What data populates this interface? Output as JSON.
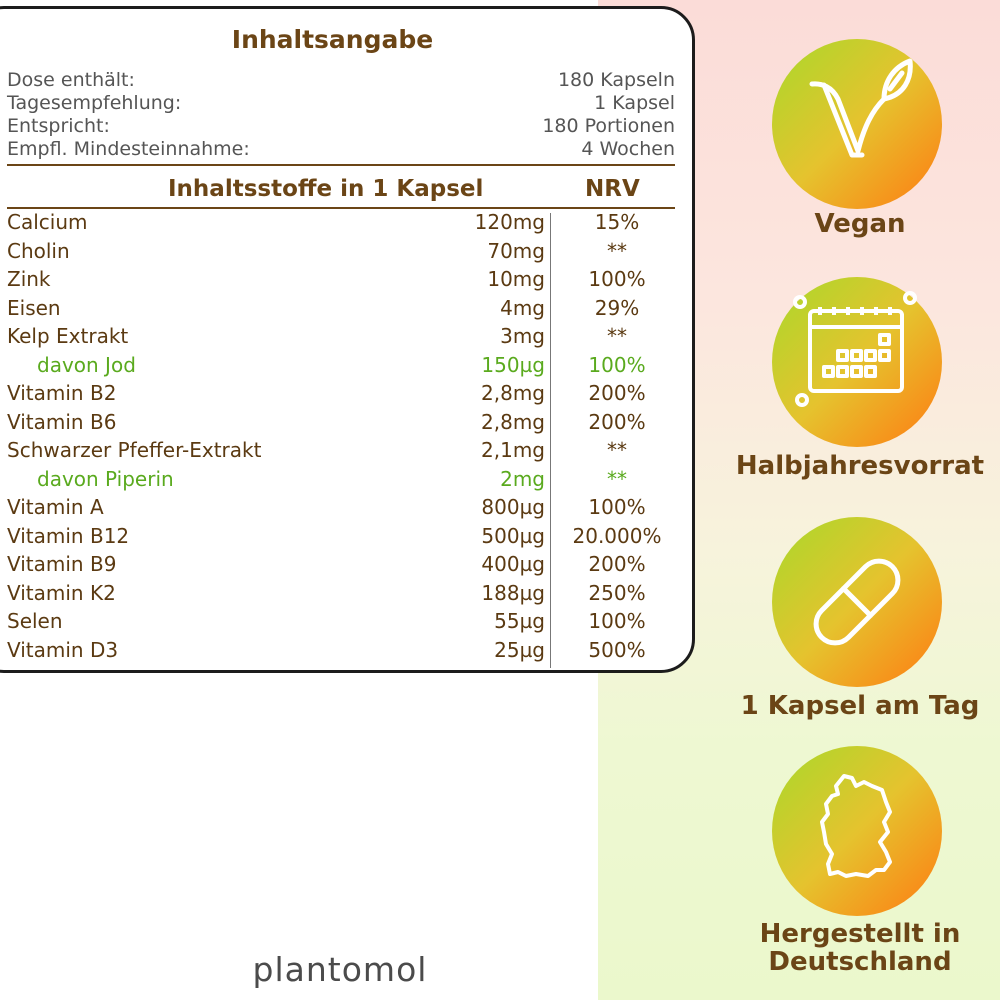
{
  "card": {
    "title": "Inhaltsangabe",
    "info": [
      {
        "label": "Dose enthält:",
        "value": "180 Kapseln"
      },
      {
        "label": "Tagesempfehlung:",
        "value": "1 Kapsel"
      },
      {
        "label": "Entspricht:",
        "value": "180 Portionen"
      },
      {
        "label": "Empfl. Mindesteinnahme:",
        "value": "4 Wochen"
      }
    ],
    "col_header": "Inhaltsstoffe in 1 Kapsel",
    "nrv_header": "NRV",
    "rows": [
      {
        "name": "Calcium",
        "amount": "120mg",
        "nrv": "15%"
      },
      {
        "name": "Cholin",
        "amount": "70mg",
        "nrv": "**"
      },
      {
        "name": "Zink",
        "amount": "10mg",
        "nrv": "100%"
      },
      {
        "name": "Eisen",
        "amount": "4mg",
        "nrv": "29%"
      },
      {
        "name": "Kelp Extrakt",
        "amount": "3mg",
        "nrv": "**"
      },
      {
        "name": "davon Jod",
        "amount": "150µg",
        "nrv": "100%"
      },
      {
        "name": "Vitamin B2",
        "amount": "2,8mg",
        "nrv": "200%"
      },
      {
        "name": "Vitamin B6",
        "amount": "2,8mg",
        "nrv": "200%"
      },
      {
        "name": "Schwarzer Pfeffer-Extrakt",
        "amount": "2,1mg",
        "nrv": "**"
      },
      {
        "name": "davon Piperin",
        "amount": "2mg",
        "nrv": "**"
      },
      {
        "name": "Vitamin A",
        "amount": "800µg",
        "nrv": "100%"
      },
      {
        "name": "Vitamin B12",
        "amount": "500µg",
        "nrv": "20.000%"
      },
      {
        "name": "Vitamin B9",
        "amount": "400µg",
        "nrv": "200%"
      },
      {
        "name": "Vitamin K2",
        "amount": "188µg",
        "nrv": "250%"
      },
      {
        "name": "Selen",
        "amount": "55µg",
        "nrv": "100%"
      },
      {
        "name": "Vitamin D3",
        "amount": "25µg",
        "nrv": "500%"
      }
    ]
  },
  "badges": [
    {
      "icon": "vegan-leaf-icon",
      "label": "Vegan"
    },
    {
      "icon": "calendar-icon",
      "label": "Halbjahresvorrat"
    },
    {
      "icon": "capsule-icon",
      "label": "1 Kapsel am Tag"
    },
    {
      "icon": "germany-map-icon",
      "label": "Hergestellt in Deutschland"
    }
  ],
  "brand": "plantomol",
  "colors": {
    "text_brown": "#6b4516",
    "sub_green": "#5aaa1e",
    "badge_green": "#a8d92b",
    "badge_orange": "#ff7a12"
  }
}
